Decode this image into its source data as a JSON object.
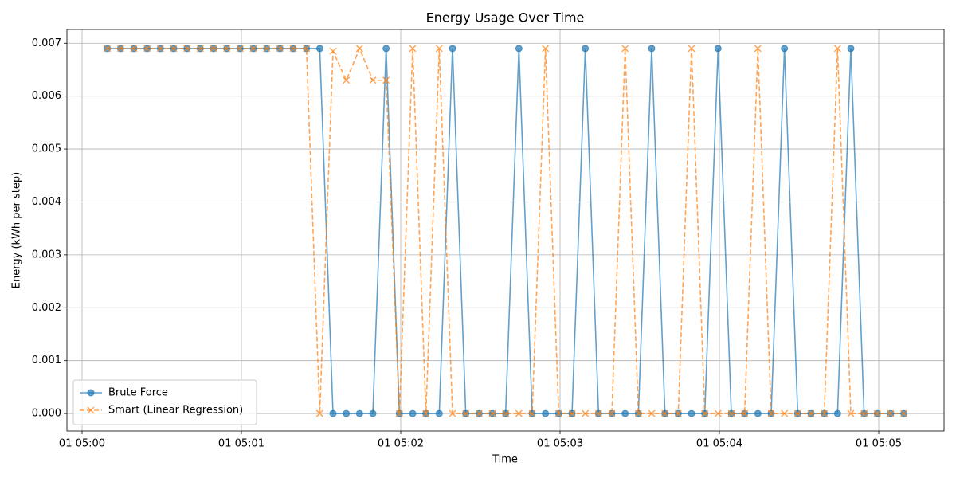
{
  "chart_data": {
    "type": "line",
    "title": "Energy Usage Over Time",
    "x_label": "Time",
    "y_label": "Energy (kWh per step)",
    "grid": true,
    "legend_position": "lower left",
    "xlim": [
      -0.095,
      5.41
    ],
    "ylim": [
      -0.00033,
      0.00726
    ],
    "xticks": [
      {
        "value": 0,
        "label": "01 05:00"
      },
      {
        "value": 1,
        "label": "01 05:01"
      },
      {
        "value": 2,
        "label": "01 05:02"
      },
      {
        "value": 3,
        "label": "01 05:03"
      },
      {
        "value": 4,
        "label": "01 05:04"
      },
      {
        "value": 5,
        "label": "01 05:05"
      }
    ],
    "yticks": [
      {
        "value": 0,
        "label": "0.000"
      },
      {
        "value": 0.001,
        "label": "0.001"
      },
      {
        "value": 0.002,
        "label": "0.002"
      },
      {
        "value": 0.003,
        "label": "0.003"
      },
      {
        "value": 0.004,
        "label": "0.004"
      },
      {
        "value": 0.005,
        "label": "0.005"
      },
      {
        "value": 0.006,
        "label": "0.006"
      },
      {
        "value": 0.007,
        "label": "0.007"
      }
    ],
    "x": [
      0.1583,
      0.2417,
      0.325,
      0.4083,
      0.4917,
      0.575,
      0.6583,
      0.7417,
      0.825,
      0.9083,
      0.9917,
      1.075,
      1.1583,
      1.2417,
      1.325,
      1.4083,
      1.4917,
      1.575,
      1.6583,
      1.7417,
      1.825,
      1.9083,
      1.9917,
      2.075,
      2.1583,
      2.2417,
      2.325,
      2.4083,
      2.4917,
      2.575,
      2.6583,
      2.7417,
      2.825,
      2.9083,
      2.9917,
      3.075,
      3.1583,
      3.2417,
      3.325,
      3.4083,
      3.4917,
      3.575,
      3.6583,
      3.7417,
      3.825,
      3.9083,
      3.9917,
      4.075,
      4.1583,
      4.2417,
      4.325,
      4.4083,
      4.4917,
      4.575,
      4.6583,
      4.7417,
      4.825,
      4.9083,
      4.9917,
      5.075,
      5.1583
    ],
    "series": [
      {
        "name": "Brute Force",
        "color": "#1f77b4",
        "marker": "o",
        "dash": "solid",
        "values": [
          0.0069,
          0.0069,
          0.0069,
          0.0069,
          0.0069,
          0.0069,
          0.0069,
          0.0069,
          0.0069,
          0.0069,
          0.0069,
          0.0069,
          0.0069,
          0.0069,
          0.0069,
          0.0069,
          0.0069,
          0,
          0,
          0,
          0,
          0.0069,
          0,
          0,
          0,
          0,
          0.0069,
          0,
          0,
          0,
          0,
          0.0069,
          0,
          0,
          0,
          0,
          0.0069,
          0,
          0,
          0,
          0,
          0.0069,
          0,
          0,
          0,
          0,
          0.0069,
          0,
          0,
          0,
          0,
          0.0069,
          0,
          0,
          0,
          0,
          0.0069,
          0,
          0,
          0,
          0
        ]
      },
      {
        "name": "Smart (Linear Regression)",
        "color": "#ff7f0e",
        "marker": "x",
        "dash": "dashed",
        "values": [
          0.0069,
          0.0069,
          0.0069,
          0.0069,
          0.0069,
          0.0069,
          0.0069,
          0.0069,
          0.0069,
          0.0069,
          0.0069,
          0.0069,
          0.0069,
          0.0069,
          0.0069,
          0.0069,
          0,
          0.00685,
          0.0063,
          0.0069,
          0.0063,
          0.0063,
          0,
          0.0069,
          0,
          0.0069,
          0,
          0,
          0,
          0,
          0,
          0,
          0,
          0.0069,
          0,
          0,
          0,
          0,
          0,
          0.0069,
          0,
          0,
          0,
          0,
          0.0069,
          0,
          0,
          0,
          0,
          0.0069,
          0,
          0,
          0,
          0,
          0,
          0.0069,
          0,
          0,
          0,
          0,
          0
        ]
      }
    ]
  }
}
